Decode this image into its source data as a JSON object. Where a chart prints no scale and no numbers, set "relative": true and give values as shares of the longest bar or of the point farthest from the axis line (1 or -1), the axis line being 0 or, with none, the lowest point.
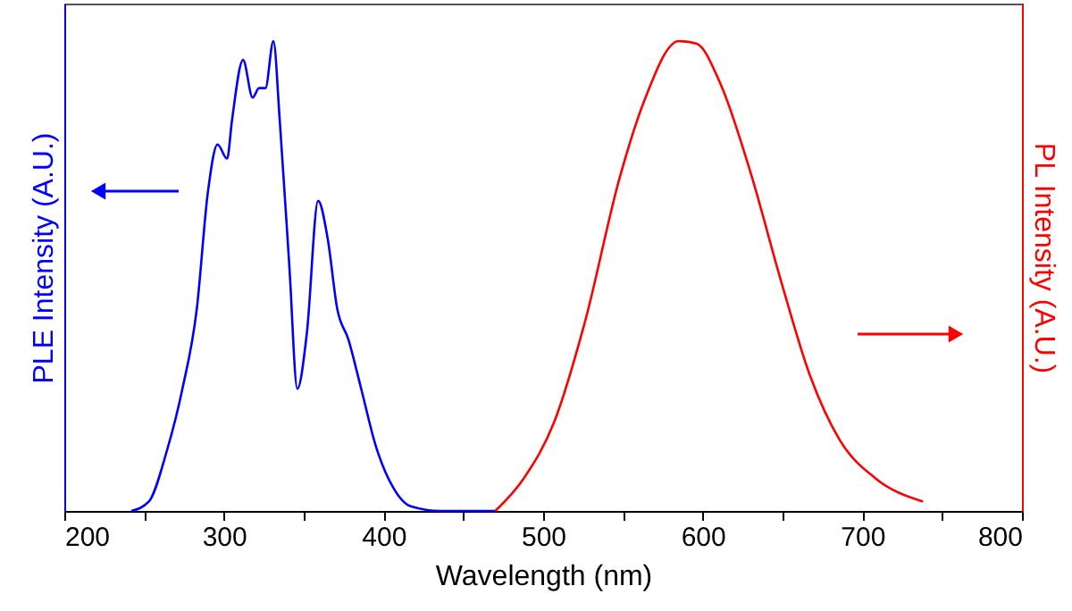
{
  "chart_data": {
    "type": "line",
    "relative": true,
    "xlabel": "Wavelength (nm)",
    "ylabel": "PLE Intensity (A.U.)",
    "y2label": "PL Intensity (A.U.)",
    "xlim": [
      200,
      800
    ],
    "xticks": [
      200,
      {
        "value": 250,
        "label": null
      },
      300,
      {
        "value": 350,
        "label": null
      },
      400,
      {
        "value": 450,
        "label": null
      },
      500,
      {
        "value": 550,
        "label": null
      },
      600,
      {
        "value": 650,
        "label": null
      },
      700,
      {
        "value": 750,
        "label": null
      },
      800
    ],
    "grid": false,
    "marker": "none",
    "line_style": "solid",
    "series": [
      {
        "color": "#0000ff",
        "axis": "y",
        "x": [
          242,
          253,
          264,
          274,
          283,
          290,
          296,
          302,
          305,
          312,
          318,
          322,
          326,
          331,
          335,
          341,
          346,
          352,
          359,
          365,
          371,
          378,
          386,
          395,
          406,
          417,
          436,
          470
        ],
        "values": [
          0,
          0.02,
          0.125,
          0.26,
          0.43,
          0.68,
          0.78,
          0.75,
          0.83,
          0.96,
          0.88,
          0.9,
          0.9,
          1.0,
          0.83,
          0.52,
          0.26,
          0.38,
          0.66,
          0.58,
          0.43,
          0.365,
          0.26,
          0.14,
          0.05,
          0.01,
          0,
          0
        ]
      },
      {
        "color": "#ff0000",
        "axis": "y2",
        "x": [
          470,
          488,
          507,
          526,
          548,
          563,
          585,
          596,
          611,
          630,
          649,
          667,
          686,
          708,
          738
        ],
        "values": [
          0,
          0.07,
          0.19,
          0.4,
          0.71,
          0.87,
          1.0,
          0.995,
          0.91,
          0.72,
          0.49,
          0.29,
          0.15,
          0.07,
          0.02
        ]
      }
    ]
  }
}
